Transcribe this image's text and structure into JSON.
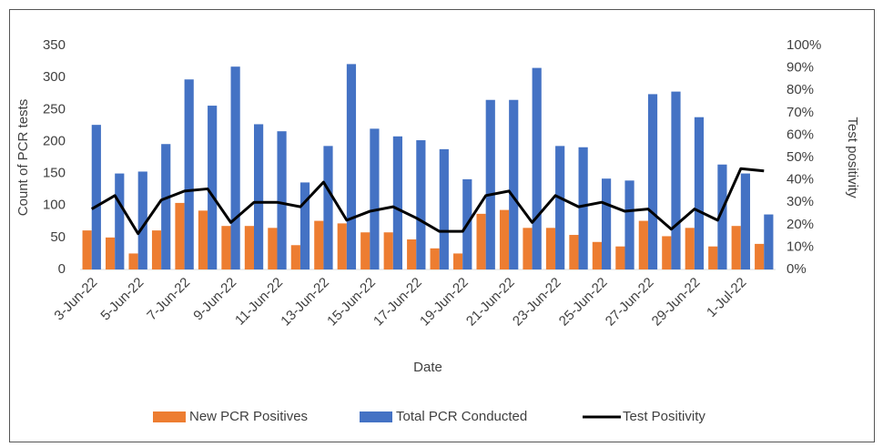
{
  "chart_data": {
    "type": "bar",
    "x_label": "Date",
    "y_label": "Count of PCR tests",
    "y2_label": "Test positivity",
    "categories": [
      "3-Jun-22",
      null,
      "5-Jun-22",
      null,
      "7-Jun-22",
      null,
      "9-Jun-22",
      null,
      "11-Jun-22",
      null,
      "13-Jun-22",
      null,
      "15-Jun-22",
      null,
      "17-Jun-22",
      null,
      "19-Jun-22",
      null,
      "21-Jun-22",
      null,
      "23-Jun-22",
      null,
      "25-Jun-22",
      null,
      "27-Jun-22",
      null,
      "29-Jun-22",
      null,
      "1-Jul-22",
      null
    ],
    "series": [
      {
        "name": "New PCR Positives",
        "color": "#ed7d31",
        "type": "bar",
        "values": [
          61,
          50,
          25,
          61,
          104,
          92,
          68,
          68,
          65,
          38,
          76,
          72,
          58,
          58,
          47,
          33,
          25,
          87,
          93,
          65,
          65,
          54,
          43,
          36,
          76,
          52,
          65,
          36,
          68,
          40
        ]
      },
      {
        "name": "Total PCR Conducted",
        "color": "#4472c4",
        "type": "bar",
        "values": [
          226,
          150,
          153,
          196,
          297,
          256,
          317,
          227,
          216,
          136,
          193,
          321,
          220,
          208,
          202,
          188,
          141,
          265,
          265,
          315,
          193,
          191,
          142,
          139,
          274,
          278,
          238,
          164,
          150,
          86
        ]
      },
      {
        "name": "Test Positivity",
        "color": "#000000",
        "type": "line",
        "axis": "y2",
        "values": [
          27,
          33,
          16,
          31,
          35,
          36,
          21,
          30,
          30,
          28,
          39,
          22,
          26,
          28,
          23,
          17,
          17,
          33,
          35,
          21,
          33,
          28,
          30,
          26,
          27,
          18,
          27,
          22,
          45,
          44
        ]
      }
    ],
    "ylim": [
      0,
      350
    ],
    "yticks": [
      0,
      50,
      100,
      150,
      200,
      250,
      300,
      350
    ],
    "y2lim": [
      0,
      100
    ],
    "y2ticks": [
      {
        "value": 0,
        "label": "0%"
      },
      {
        "value": 10,
        "label": "10%"
      },
      {
        "value": 20,
        "label": "20%"
      },
      {
        "value": 30,
        "label": "30%"
      },
      {
        "value": 40,
        "label": "40%"
      },
      {
        "value": 50,
        "label": "50%"
      },
      {
        "value": 60,
        "label": "60%"
      },
      {
        "value": 70,
        "label": "70%"
      },
      {
        "value": 80,
        "label": "80%"
      },
      {
        "value": 90,
        "label": "90%"
      },
      {
        "value": 100,
        "label": "100%"
      }
    ],
    "grid": false,
    "legend": "bottom"
  }
}
